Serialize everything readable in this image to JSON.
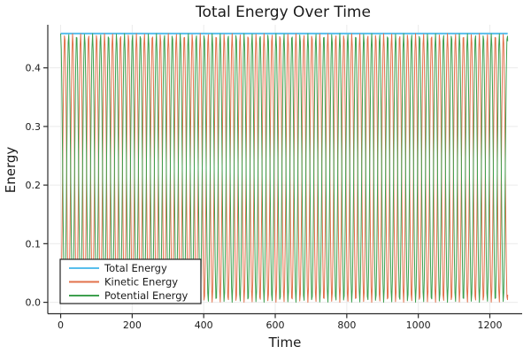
{
  "chart_data": {
    "type": "line",
    "title": "Total Energy Over Time",
    "xlabel": "Time",
    "ylabel": "Energy",
    "xlim": [
      -36,
      1278
    ],
    "ylim": [
      -0.0195,
      0.4735
    ],
    "x_ticks": [
      0,
      200,
      400,
      600,
      800,
      1000,
      1200
    ],
    "x_tick_labels": [
      "0",
      "200",
      "400",
      "600",
      "800",
      "1000",
      "1200"
    ],
    "y_ticks": [
      0.0,
      0.1,
      0.2,
      0.3,
      0.4
    ],
    "y_tick_labels": [
      "0.0",
      "0.1",
      "0.2",
      "0.3",
      "0.4"
    ],
    "grid": true,
    "grid_color": "#ebebeb",
    "axis_color": "#2b2b2b",
    "t_start": 0,
    "t_end": 1250,
    "sample_step": 1.75,
    "total_energy": 0.4585,
    "oscillation_period": 22.3,
    "series": [
      {
        "name": "Total Energy",
        "color": "#58BEEC",
        "kind": "constant",
        "value": 0.4585,
        "line_width": 2,
        "formula": "E = 0.4585 (constant)"
      },
      {
        "name": "Kinetic Energy",
        "color": "#E2714B",
        "kind": "sin2",
        "amplitude": 0.4585,
        "period": 22.3,
        "phase": 0,
        "line_width": 1,
        "formula": "KE = E*sin(pi*t/T)^2, oscillates 0 to 0.4585"
      },
      {
        "name": "Potential Energy",
        "color": "#3EA04F",
        "kind": "sin2",
        "amplitude": 0.4585,
        "period": 22.3,
        "phase": 0.5,
        "line_width": 1,
        "formula": "PE = E*cos(pi*t/T)^2, anti-phase with KE"
      }
    ],
    "legend": {
      "position": "bottom-left",
      "border_color": "#222222",
      "background": "#ffffff",
      "entries": [
        "Total Energy",
        "Kinetic Energy",
        "Potential Energy"
      ]
    }
  }
}
